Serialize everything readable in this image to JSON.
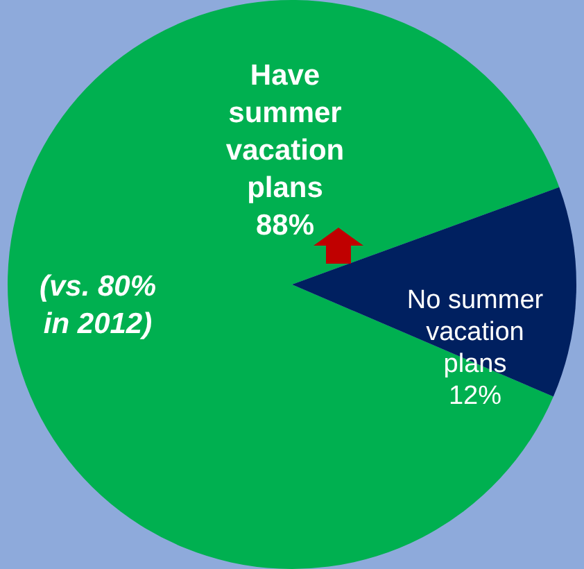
{
  "chart_data": {
    "type": "pie",
    "categories": [
      "Have summer vacation plans",
      "No summer vacation plans"
    ],
    "values": [
      88,
      12
    ],
    "colors": [
      "#00b050",
      "#002060"
    ],
    "value_labels": [
      "88%",
      "12%"
    ],
    "annotations": [
      "(vs. 80% in 2012)"
    ],
    "legend": false
  }
}
